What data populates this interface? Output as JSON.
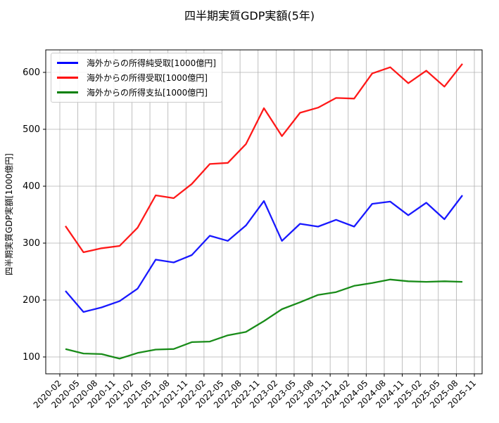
{
  "title": "四半期実質GDP実額(5年)",
  "ylabel": "四半期実質GDP実額[1000億円]",
  "legend": [
    {
      "label": "海外からの所得純受取[1000億円]",
      "color": "#0000ff"
    },
    {
      "label": "海外からの所得受取[1000億円]",
      "color": "#ff0000"
    },
    {
      "label": "海外からの所得支払[1000億円]",
      "color": "#008000"
    }
  ],
  "chart_data": {
    "type": "line",
    "title": "四半期実質GDP実額(5年)",
    "xlabel": "",
    "ylabel": "四半期実質GDP実額[1000億円]",
    "x_ticks": [
      "2020-02",
      "2020-05",
      "2020-08",
      "2020-11",
      "2021-02",
      "2021-05",
      "2021-08",
      "2021-11",
      "2022-02",
      "2022-05",
      "2022-08",
      "2022-11",
      "2023-02",
      "2023-05",
      "2023-08",
      "2023-11",
      "2024-02",
      "2024-05",
      "2024-08",
      "2024-11",
      "2025-02",
      "2025-05",
      "2025-08",
      "2025-11"
    ],
    "y_ticks": [
      100,
      200,
      300,
      400,
      500,
      600
    ],
    "ylim": [
      70,
      640
    ],
    "grid": true,
    "legend_position": "upper left",
    "x": [
      "2020-Q1",
      "2020-Q2",
      "2020-Q3",
      "2020-Q4",
      "2021-Q1",
      "2021-Q2",
      "2021-Q3",
      "2021-Q4",
      "2022-Q1",
      "2022-Q2",
      "2022-Q3",
      "2022-Q4",
      "2023-Q1",
      "2023-Q2",
      "2023-Q3",
      "2023-Q4",
      "2024-Q1",
      "2024-Q2",
      "2024-Q3",
      "2024-Q4",
      "2025-Q1",
      "2025-Q2",
      "2025-Q3"
    ],
    "series": [
      {
        "name": "海外からの所得純受取[1000億円]",
        "color": "#0000ff",
        "values": [
          216,
          179,
          187,
          198,
          220,
          271,
          266,
          279,
          313,
          304,
          331,
          374,
          304,
          334,
          329,
          341,
          329,
          369,
          373,
          349,
          371,
          342,
          384
        ]
      },
      {
        "name": "海外からの所得受取[1000億円]",
        "color": "#ff0000",
        "values": [
          330,
          284,
          291,
          295,
          327,
          384,
          379,
          404,
          439,
          441,
          474,
          537,
          488,
          529,
          538,
          555,
          554,
          598,
          609,
          581,
          603,
          575,
          615
        ]
      },
      {
        "name": "海外からの所得支払[1000億円]",
        "color": "#008000",
        "values": [
          114,
          106,
          105,
          97,
          107,
          113,
          114,
          126,
          127,
          138,
          144,
          163,
          184,
          196,
          209,
          214,
          225,
          230,
          236,
          233,
          232,
          233,
          232
        ]
      }
    ]
  }
}
